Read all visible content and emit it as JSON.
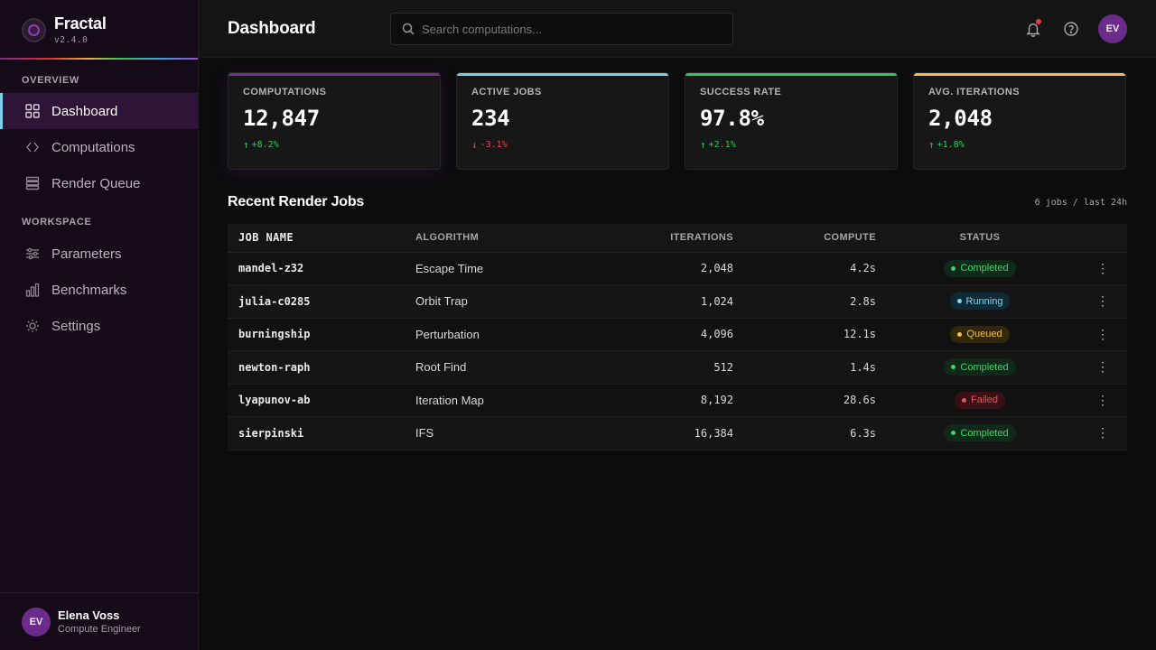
{
  "app": {
    "name": "Fractal",
    "version": "v2.4.0"
  },
  "sidebar": {
    "sections": [
      {
        "title": "OVERVIEW",
        "items": [
          {
            "label": "Dashboard",
            "icon": "grid-icon",
            "active": true
          },
          {
            "label": "Computations",
            "icon": "code-icon",
            "active": false
          },
          {
            "label": "Render Queue",
            "icon": "stack-icon",
            "active": false
          }
        ]
      },
      {
        "title": "WORKSPACE",
        "items": [
          {
            "label": "Parameters",
            "icon": "sliders-icon",
            "active": false
          },
          {
            "label": "Benchmarks",
            "icon": "bar-chart-icon",
            "active": false
          },
          {
            "label": "Settings",
            "icon": "sun-gear-icon",
            "active": false
          }
        ]
      }
    ],
    "user": {
      "initials": "EV",
      "name": "Elena Voss",
      "role": "Compute Engineer"
    }
  },
  "header": {
    "title": "Dashboard",
    "search_placeholder": "Search computations...",
    "avatar_initials": "EV"
  },
  "stats": [
    {
      "label": "COMPUTATIONS",
      "value": "12,847",
      "delta": "+8.2%",
      "direction": "up",
      "accent": "#7b2a8e"
    },
    {
      "label": "ACTIVE JOBS",
      "value": "234",
      "delta": "-3.1%",
      "direction": "down",
      "accent": "#7ad1e8"
    },
    {
      "label": "SUCCESS RATE",
      "value": "97.8%",
      "delta": "+2.1%",
      "direction": "up",
      "accent": "#2ec95c"
    },
    {
      "label": "AVG. ITERATIONS",
      "value": "2,048",
      "delta": "+1.8%",
      "direction": "up",
      "accent": "#f0c24a"
    }
  ],
  "jobs": {
    "title": "Recent Render Jobs",
    "meta": "6 jobs / last 24h",
    "columns": [
      "JOB NAME",
      "ALGORITHM",
      "ITERATIONS",
      "COMPUTE",
      "STATUS"
    ],
    "rows": [
      {
        "name": "mandel-z32",
        "algorithm": "Escape Time",
        "iterations": "2,048",
        "compute": "4.2s",
        "status": "Completed"
      },
      {
        "name": "julia-c0285",
        "algorithm": "Orbit Trap",
        "iterations": "1,024",
        "compute": "2.8s",
        "status": "Running"
      },
      {
        "name": "burningship",
        "algorithm": "Perturbation",
        "iterations": "4,096",
        "compute": "12.1s",
        "status": "Queued"
      },
      {
        "name": "newton-raph",
        "algorithm": "Root Find",
        "iterations": "512",
        "compute": "1.4s",
        "status": "Completed"
      },
      {
        "name": "lyapunov-ab",
        "algorithm": "Iteration Map",
        "iterations": "8,192",
        "compute": "28.6s",
        "status": "Failed"
      },
      {
        "name": "sierpinski",
        "algorithm": "IFS",
        "iterations": "16,384",
        "compute": "6.3s",
        "status": "Completed"
      }
    ]
  }
}
